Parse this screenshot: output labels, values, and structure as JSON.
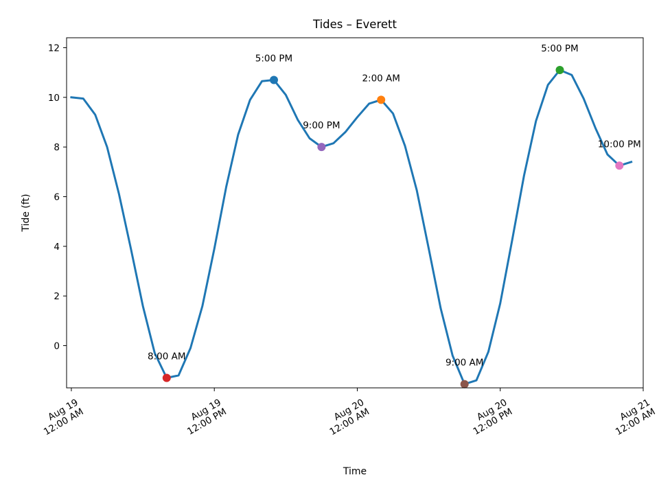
{
  "chart_data": {
    "type": "line",
    "title": "Tides – Everett",
    "xlabel": "Time",
    "ylabel": "Tide (ft)",
    "x_range_hours": [
      -1,
      120
    ],
    "ylim": [
      -1.7,
      12.4
    ],
    "yticks": [
      0,
      2,
      4,
      6,
      8,
      10,
      12
    ],
    "xticks": [
      {
        "hours": 0,
        "line1": "Aug 19",
        "line2": "12:00 AM"
      },
      {
        "hours": 30,
        "line1": "Aug 19",
        "line2": "12:00 PM"
      },
      {
        "hours": 60,
        "line1": "Aug 20",
        "line2": "12:00 AM"
      },
      {
        "hours": 90,
        "line1": "Aug 20",
        "line2": "12:00 PM"
      },
      {
        "hours": 120,
        "line1": "Aug 21",
        "line2": "12:00 AM"
      }
    ],
    "line_color": "#1f77b4",
    "series": [
      {
        "x_hours": [
          0,
          2.5,
          5,
          7.5,
          10,
          12.5,
          15,
          17.5,
          20,
          22.5,
          25,
          27.5,
          30,
          32.5,
          35,
          37.5,
          40,
          42.5,
          45,
          47.5,
          50,
          52.5,
          55,
          57.5,
          60,
          62.5,
          65,
          67.5,
          70,
          72.5,
          75,
          77.5,
          80,
          82.5,
          85,
          87.5,
          90,
          92.5,
          95,
          97.5,
          100,
          102.5,
          105,
          107.5,
          110,
          112.5,
          115,
          117.5
        ],
        "y": [
          10.0,
          9.95,
          9.3,
          8.0,
          6.1,
          3.9,
          1.6,
          -0.3,
          -1.3,
          -1.2,
          -0.1,
          1.6,
          3.9,
          6.4,
          8.5,
          9.9,
          10.65,
          10.7,
          10.1,
          9.1,
          8.35,
          8.0,
          8.15,
          8.6,
          9.2,
          9.75,
          9.9,
          9.35,
          8.05,
          6.25,
          3.9,
          1.5,
          -0.4,
          -1.55,
          -1.4,
          -0.25,
          1.7,
          4.25,
          6.85,
          9.05,
          10.5,
          11.1,
          10.9,
          9.95,
          8.75,
          7.7,
          7.25,
          7.4
        ]
      }
    ],
    "annotations": [
      {
        "label": "5:00 PM",
        "x_hours": 42.5,
        "y": 10.7,
        "color": "#1f77b4"
      },
      {
        "label": "2:00 AM",
        "x_hours": 65,
        "y": 9.9,
        "color": "#ff7f0e"
      },
      {
        "label": "5:00 PM",
        "x_hours": 102.5,
        "y": 11.1,
        "color": "#2ca02c"
      },
      {
        "label": "8:00 AM",
        "x_hours": 20,
        "y": -1.3,
        "color": "#d62728"
      },
      {
        "label": "9:00 PM",
        "x_hours": 52.5,
        "y": 8.0,
        "color": "#9467bd"
      },
      {
        "label": "9:00 AM",
        "x_hours": 82.5,
        "y": -1.55,
        "color": "#8c564b"
      },
      {
        "label": "10:00 PM",
        "x_hours": 115,
        "y": 7.25,
        "color": "#e377c2"
      }
    ]
  }
}
